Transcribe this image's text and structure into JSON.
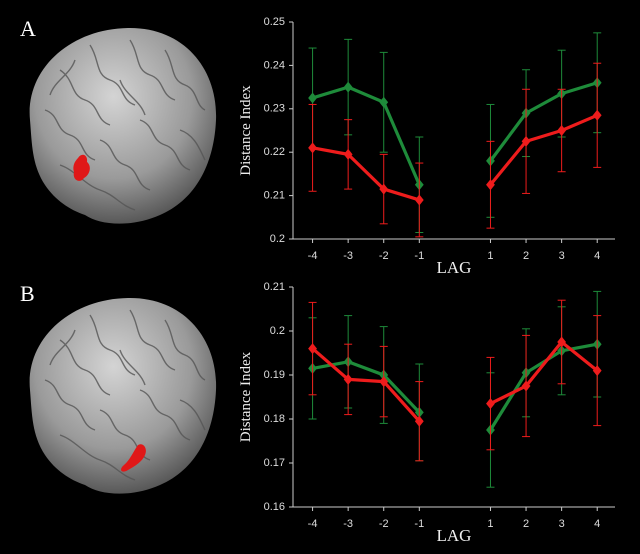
{
  "chart_data": [
    {
      "type": "line",
      "label": "A",
      "x_label": "LAG",
      "y_label": "Distance Index",
      "x": [
        -4,
        -3,
        -2,
        -1,
        0,
        1,
        2,
        3,
        4
      ],
      "xlim": [
        -4.55,
        4.5
      ],
      "xticks": [
        -4,
        -3,
        -2,
        -1,
        1,
        2,
        3,
        4
      ],
      "ylim": [
        0.2,
        0.25
      ],
      "yticks": [
        0.2,
        0.21,
        0.22,
        0.23,
        0.24,
        0.25
      ],
      "series": [
        {
          "color": "#1e8b3a",
          "values": [
            0.2325,
            0.235,
            0.2315,
            0.2125,
            null,
            0.218,
            0.229,
            0.2335,
            0.236
          ],
          "errors": [
            0.0115,
            0.011,
            0.0115,
            0.011,
            null,
            0.013,
            0.01,
            0.01,
            0.0115
          ]
        },
        {
          "color": "#ee1c1c",
          "values": [
            0.221,
            0.2195,
            0.2115,
            0.209,
            null,
            0.2125,
            0.2225,
            0.225,
            0.2285
          ],
          "errors": [
            0.01,
            0.008,
            0.008,
            0.0085,
            null,
            0.01,
            0.012,
            0.0095,
            0.012
          ]
        }
      ]
    },
    {
      "type": "line",
      "label": "B",
      "x_label": "LAG",
      "y_label": "Distance Index",
      "x": [
        -4,
        -3,
        -2,
        -1,
        0,
        1,
        2,
        3,
        4
      ],
      "xlim": [
        -4.55,
        4.5
      ],
      "xticks": [
        -4,
        -3,
        -2,
        -1,
        1,
        2,
        3,
        4
      ],
      "ylim": [
        0.16,
        0.21
      ],
      "yticks": [
        0.16,
        0.17,
        0.18,
        0.19,
        0.2,
        0.21
      ],
      "series": [
        {
          "color": "#1e8b3a",
          "values": [
            0.1915,
            0.193,
            0.19,
            0.1815,
            null,
            0.1775,
            0.1905,
            0.1955,
            0.197
          ],
          "errors": [
            0.0115,
            0.0105,
            0.011,
            0.011,
            null,
            0.013,
            0.01,
            0.01,
            0.012
          ]
        },
        {
          "color": "#ee1c1c",
          "values": [
            0.196,
            0.189,
            0.1885,
            0.1795,
            null,
            0.1835,
            0.1875,
            0.1975,
            0.191
          ],
          "errors": [
            0.0105,
            0.008,
            0.008,
            0.009,
            null,
            0.0105,
            0.0115,
            0.0095,
            0.0125
          ]
        }
      ]
    }
  ]
}
